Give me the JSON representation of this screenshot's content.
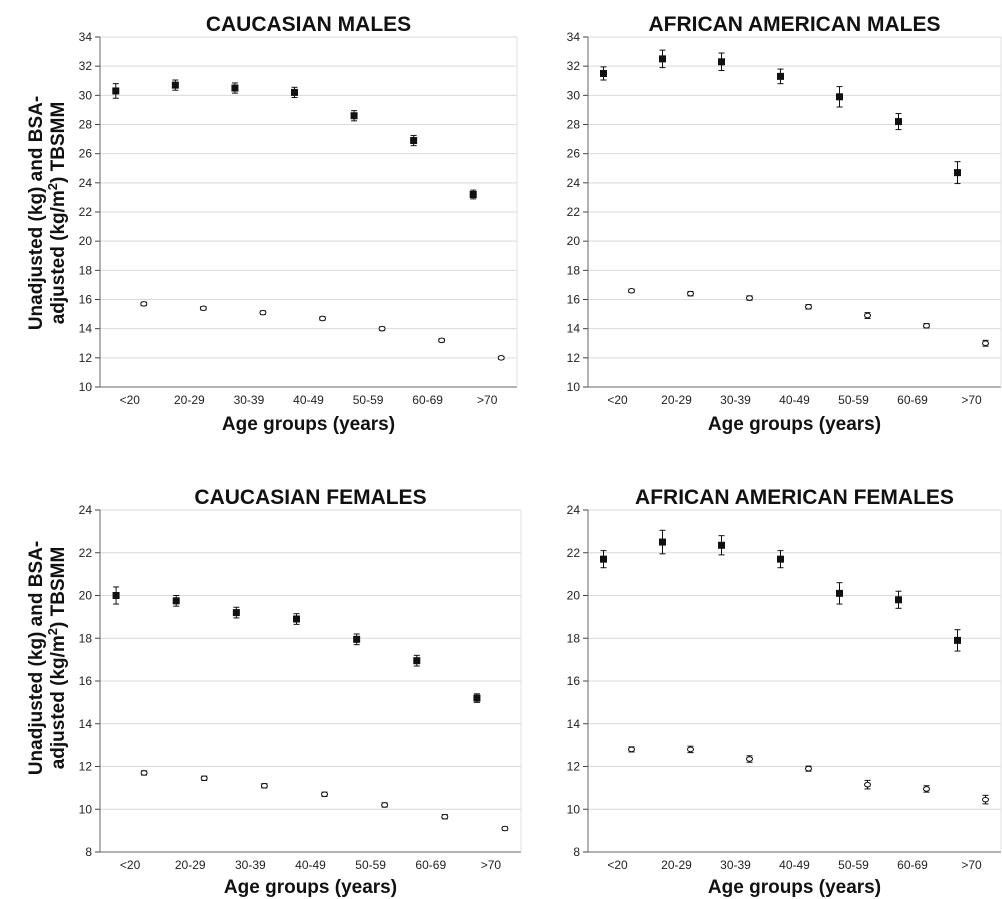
{
  "figure": {
    "ylabel_part1": "Unadjusted (kg) and BSA-",
    "ylabel_part2a": "adjusted (kg/m",
    "ylabel_sup": "2",
    "ylabel_part2b": ") TBSMM"
  },
  "chart_data": [
    {
      "type": "scatter",
      "title": "CAUCASIAN MALES",
      "xlabel": "Age groups (years)",
      "ylabel": "Unadjusted (kg) and BSA-adjusted (kg/m2) TBSMM",
      "categories": [
        "<20",
        "20-29",
        "30-39",
        "40-49",
        "50-59",
        "60-69",
        ">70"
      ],
      "ylim": [
        10,
        34
      ],
      "yticks": [
        10,
        12,
        14,
        16,
        18,
        20,
        22,
        24,
        26,
        28,
        30,
        32,
        34
      ],
      "grid": true,
      "series": [
        {
          "marker": "filled-square",
          "values": [
            30.3,
            30.7,
            30.5,
            30.2,
            28.6,
            26.9,
            23.2
          ],
          "err": [
            0.5,
            0.35,
            0.35,
            0.35,
            0.35,
            0.35,
            0.3
          ]
        },
        {
          "marker": "open-circle",
          "values": [
            15.7,
            15.4,
            15.1,
            14.7,
            14.0,
            13.2,
            12.0
          ],
          "err": [
            0.12,
            0.12,
            0.12,
            0.12,
            0.12,
            0.12,
            0.1
          ]
        }
      ]
    },
    {
      "type": "scatter",
      "title": "AFRICAN AMERICAN MALES",
      "xlabel": "Age groups (years)",
      "ylabel": "",
      "categories": [
        "<20",
        "20-29",
        "30-39",
        "40-49",
        "50-59",
        "60-69",
        ">70"
      ],
      "ylim": [
        10,
        34
      ],
      "yticks": [
        10,
        12,
        14,
        16,
        18,
        20,
        22,
        24,
        26,
        28,
        30,
        32,
        34
      ],
      "grid": true,
      "series": [
        {
          "marker": "filled-square",
          "values": [
            31.5,
            32.5,
            32.3,
            31.3,
            29.9,
            28.2,
            24.7
          ],
          "err": [
            0.45,
            0.6,
            0.6,
            0.5,
            0.7,
            0.55,
            0.75
          ]
        },
        {
          "marker": "open-circle",
          "values": [
            16.6,
            16.4,
            16.1,
            15.5,
            14.9,
            14.2,
            13.0
          ],
          "err": [
            0.12,
            0.15,
            0.15,
            0.15,
            0.2,
            0.15,
            0.2
          ]
        }
      ]
    },
    {
      "type": "scatter",
      "title": "CAUCASIAN FEMALES",
      "xlabel": "Age groups (years)",
      "ylabel": "Unadjusted (kg) and BSA-adjusted (kg/m2) TBSMM",
      "categories": [
        "<20",
        "20-29",
        "30-39",
        "40-49",
        "50-59",
        "60-69",
        ">70"
      ],
      "ylim": [
        8,
        24
      ],
      "yticks": [
        8,
        10,
        12,
        14,
        16,
        18,
        20,
        22,
        24
      ],
      "grid": true,
      "series": [
        {
          "marker": "filled-square",
          "values": [
            20.0,
            19.75,
            19.2,
            18.9,
            17.95,
            16.95,
            15.2
          ],
          "err": [
            0.4,
            0.25,
            0.25,
            0.25,
            0.25,
            0.25,
            0.2
          ]
        },
        {
          "marker": "open-circle",
          "values": [
            11.7,
            11.45,
            11.1,
            10.7,
            10.2,
            9.65,
            9.1
          ],
          "err": [
            0.1,
            0.1,
            0.1,
            0.1,
            0.1,
            0.1,
            0.08
          ]
        }
      ]
    },
    {
      "type": "scatter",
      "title": "AFRICAN AMERICAN FEMALES",
      "xlabel": "Age groups (years)",
      "ylabel": "",
      "categories": [
        "<20",
        "20-29",
        "30-39",
        "40-49",
        "50-59",
        "60-69",
        ">70"
      ],
      "ylim": [
        8,
        24
      ],
      "yticks": [
        8,
        10,
        12,
        14,
        16,
        18,
        20,
        22,
        24
      ],
      "grid": true,
      "series": [
        {
          "marker": "filled-square",
          "values": [
            21.7,
            22.5,
            22.35,
            21.7,
            20.1,
            19.8,
            17.9
          ],
          "err": [
            0.4,
            0.55,
            0.45,
            0.4,
            0.5,
            0.4,
            0.5
          ]
        },
        {
          "marker": "open-circle",
          "values": [
            12.8,
            12.8,
            12.35,
            11.9,
            11.15,
            10.95,
            10.45
          ],
          "err": [
            0.12,
            0.15,
            0.15,
            0.12,
            0.2,
            0.15,
            0.2
          ]
        }
      ]
    }
  ]
}
